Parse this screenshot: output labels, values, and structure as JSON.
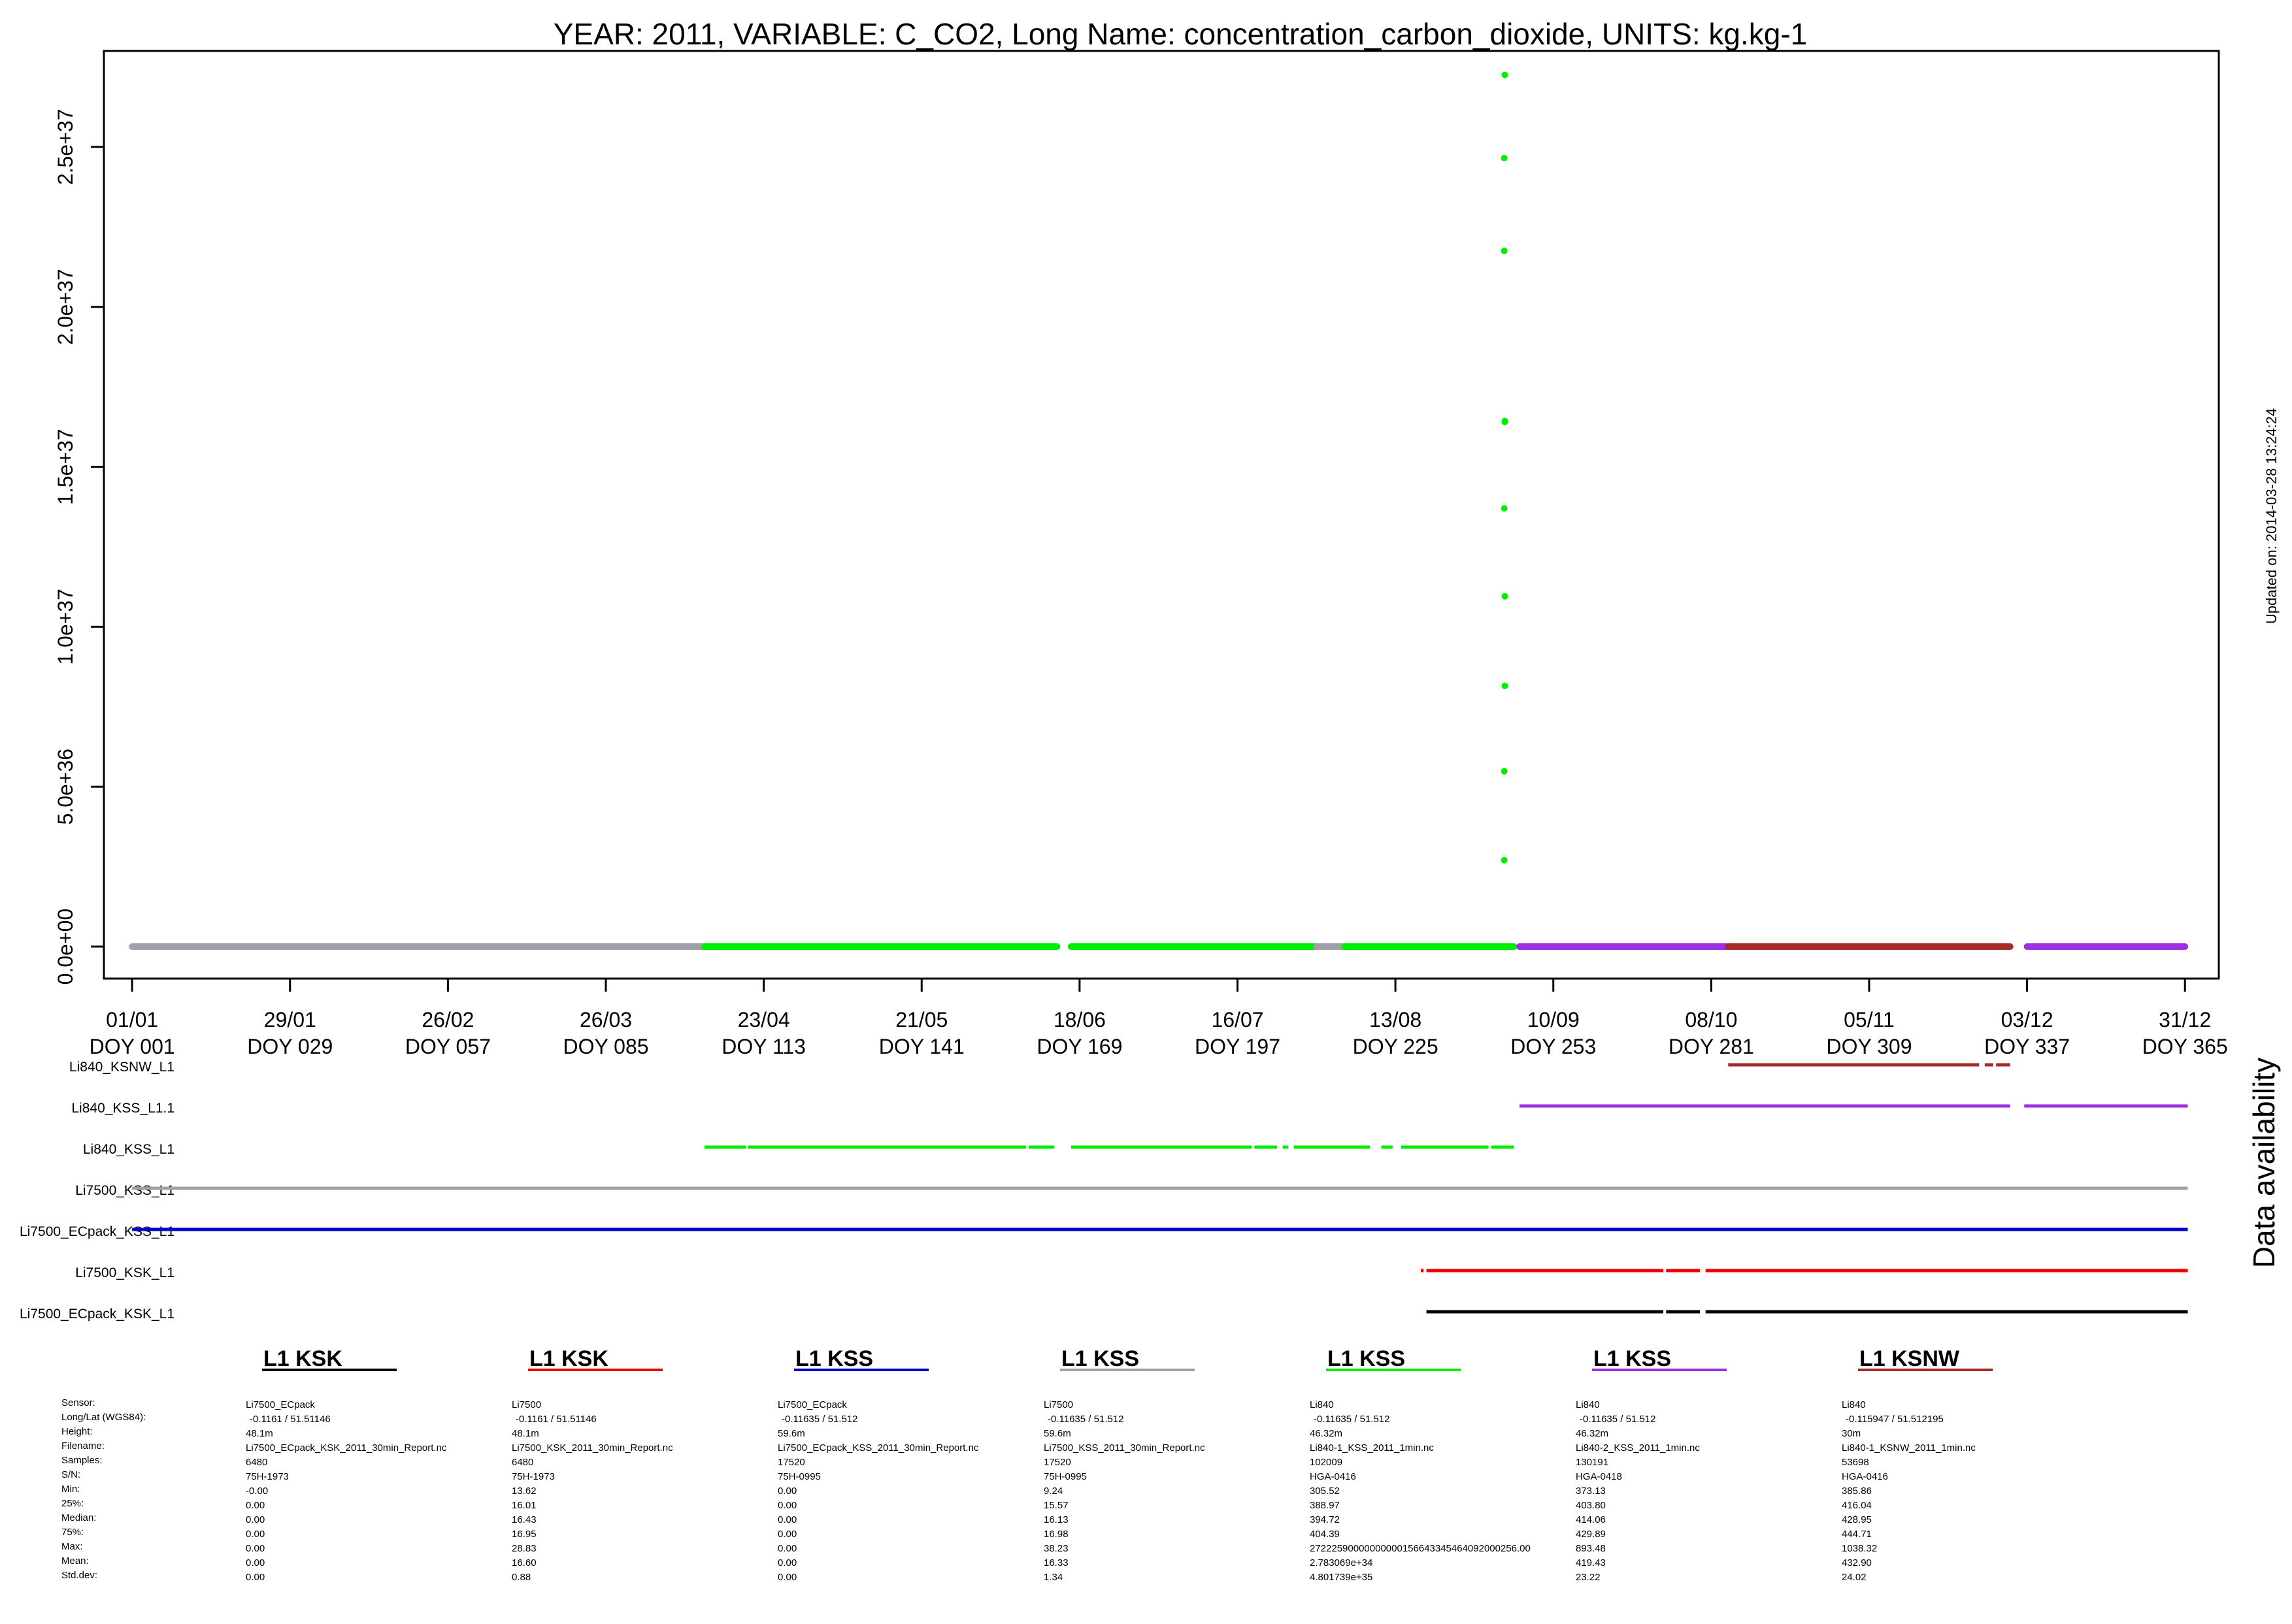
{
  "chart_data": {
    "type": "scatter",
    "title": "YEAR: 2011, VARIABLE: C_CO2, Long Name: concentration_carbon_dioxide, UNITS: kg.kg-1",
    "updated": "Updated on: 2014-03-28 13:24:24",
    "availability_label": "Data availability",
    "xlim": [
      -4,
      371
    ],
    "ylim": [
      -1e+36,
      2.8e+37
    ],
    "x_ticks": [
      {
        "doy": 1,
        "date": "01/01",
        "label": "DOY 001"
      },
      {
        "doy": 29,
        "date": "29/01",
        "label": "DOY 029"
      },
      {
        "doy": 57,
        "date": "26/02",
        "label": "DOY 057"
      },
      {
        "doy": 85,
        "date": "26/03",
        "label": "DOY 085"
      },
      {
        "doy": 113,
        "date": "23/04",
        "label": "DOY 113"
      },
      {
        "doy": 141,
        "date": "21/05",
        "label": "DOY 141"
      },
      {
        "doy": 169,
        "date": "18/06",
        "label": "DOY 169"
      },
      {
        "doy": 197,
        "date": "16/07",
        "label": "DOY 197"
      },
      {
        "doy": 225,
        "date": "13/08",
        "label": "DOY 225"
      },
      {
        "doy": 253,
        "date": "10/09",
        "label": "DOY 253"
      },
      {
        "doy": 281,
        "date": "08/10",
        "label": "DOY 281"
      },
      {
        "doy": 309,
        "date": "05/11",
        "label": "DOY 309"
      },
      {
        "doy": 337,
        "date": "03/12",
        "label": "DOY 337"
      },
      {
        "doy": 365,
        "date": "31/12",
        "label": "DOY 365"
      }
    ],
    "y_ticks": [
      {
        "value": 0,
        "label": "0.0e+00"
      },
      {
        "value": 5e+36,
        "label": "5.0e+36"
      },
      {
        "value": 1e+37,
        "label": "1.0e+37"
      },
      {
        "value": 1.5e+37,
        "label": "1.5e+37"
      },
      {
        "value": 2e+37,
        "label": "2.0e+37"
      },
      {
        "value": 2.5e+37,
        "label": "2.5e+37"
      }
    ],
    "baseline_segments": [
      {
        "color": "#a0a0a8",
        "from": 1,
        "to": 102.5
      },
      {
        "color": "#00ee00",
        "from": 102.5,
        "to": 165
      },
      {
        "color": "#00ee00",
        "from": 167.5,
        "to": 211
      },
      {
        "color": "#a0a0a8",
        "from": 211,
        "to": 216
      },
      {
        "color": "#00ee00",
        "from": 216,
        "to": 246
      },
      {
        "color": "#9b30e0",
        "from": 247,
        "to": 284
      },
      {
        "color": "#a52a2a",
        "from": 284,
        "to": 334
      },
      {
        "color": "#9b30e0",
        "from": 337,
        "to": 365
      }
    ],
    "outliers": {
      "color": "#00ee00",
      "x": [
        244.3,
        244.3,
        244.4,
        244.4,
        244.3,
        244.4,
        244.4,
        244.3,
        244.3,
        244.4
      ],
      "y": [
        2.7e+36,
        5.48e+36,
        8.15e+36,
        1.095e+37,
        1.37e+37,
        1.64e+37,
        1.643e+37,
        2.175e+37,
        2.465e+37,
        2.725e+37
      ]
    },
    "availability": [
      {
        "name": "Li840_KSNW_L1",
        "color": "#a52a2a",
        "segments": [
          [
            284,
            328.5
          ],
          [
            329.5,
            331
          ],
          [
            331.5,
            334
          ]
        ]
      },
      {
        "name": "Li840_KSS_L1.1",
        "color": "#9b30e0",
        "segments": [
          [
            247,
            334
          ],
          [
            336.5,
            365.5
          ]
        ]
      },
      {
        "name": "Li840_KSS_L1",
        "color": "#00ee00",
        "segments": [
          [
            102.5,
            109.8
          ],
          [
            110.2,
            159.5
          ],
          [
            160,
            164.5
          ],
          [
            167.5,
            199.5
          ],
          [
            200,
            204
          ],
          [
            205,
            206
          ],
          [
            207,
            220.5
          ],
          [
            222.5,
            224.5
          ],
          [
            226,
            241.5
          ],
          [
            242,
            246
          ]
        ]
      },
      {
        "name": "Li7500_KSS_L1",
        "color": "#a0a0a8",
        "segments": [
          [
            1,
            365.5
          ]
        ]
      },
      {
        "name": "Li7500_ECpack_KSS_L1",
        "color": "#0000cc",
        "segments": [
          [
            1,
            365.5
          ]
        ]
      },
      {
        "name": "Li7500_KSK_L1",
        "color": "#ee0000",
        "segments": [
          [
            229.5,
            230
          ],
          [
            230.5,
            272.5
          ],
          [
            273,
            279
          ],
          [
            280,
            365.5
          ]
        ]
      },
      {
        "name": "Li7500_ECpack_KSK_L1",
        "color": "#000000",
        "segments": [
          [
            230.5,
            272.5
          ],
          [
            273,
            279
          ],
          [
            280,
            365.5
          ]
        ]
      }
    ],
    "stat_labels": [
      "Sensor:",
      "Long/Lat (WGS84):",
      "Height:",
      "Filename:",
      "Samples:",
      "S/N:",
      "Min:",
      "25%:",
      "Median:",
      "75%:",
      "Max:",
      "Mean:",
      "Std.dev:"
    ],
    "stations": [
      {
        "title": "L1 KSK",
        "color": "#000000",
        "values": [
          "Li7500_ECpack",
          "-0.1161 / 51.51146",
          "48.1m",
          "Li7500_ECpack_KSK_2011_30min_Report.nc",
          "6480",
          "75H-1973",
          "-0.00",
          "0.00",
          "0.00",
          "0.00",
          "0.00",
          "0.00",
          "0.00"
        ]
      },
      {
        "title": "L1 KSK",
        "color": "#ee0000",
        "values": [
          "Li7500",
          "-0.1161 / 51.51146",
          "48.1m",
          "Li7500_KSK_2011_30min_Report.nc",
          "6480",
          "75H-1973",
          "13.62",
          "16.01",
          "16.43",
          "16.95",
          "28.83",
          "16.60",
          "0.88"
        ]
      },
      {
        "title": "L1 KSS",
        "color": "#0000cc",
        "values": [
          "Li7500_ECpack",
          "-0.11635 / 51.512",
          "59.6m",
          "Li7500_ECpack_KSS_2011_30min_Report.nc",
          "17520",
          "75H-0995",
          "0.00",
          "0.00",
          "0.00",
          "0.00",
          "0.00",
          "0.00",
          "0.00"
        ]
      },
      {
        "title": "L1 KSS",
        "color": "#a0a0a8",
        "values": [
          "Li7500",
          "-0.11635 / 51.512",
          "59.6m",
          "Li7500_KSS_2011_30min_Report.nc",
          "17520",
          "75H-0995",
          "9.24",
          "15.57",
          "16.13",
          "16.98",
          "38.23",
          "16.33",
          "1.34"
        ]
      },
      {
        "title": "L1 KSS",
        "color": "#00ee00",
        "values": [
          "Li840",
          "-0.11635 / 51.512",
          "46.32m",
          "Li840-1_KSS_2011_1min.nc",
          "102009",
          "HGA-0416",
          "305.52",
          "388.97",
          "394.72",
          "404.39",
          "27222590000000000156643345464092000256.00",
          "2.783069e+34",
          "4.801739e+35"
        ]
      },
      {
        "title": "L1 KSS",
        "color": "#9b30e0",
        "values": [
          "Li840",
          "-0.11635 / 51.512",
          "46.32m",
          "Li840-2_KSS_2011_1min.nc",
          "130191",
          "HGA-0418",
          "373.13",
          "403.80",
          "414.06",
          "429.89",
          "893.48",
          "419.43",
          "23.22"
        ]
      },
      {
        "title": "L1 KSNW",
        "color": "#a52a2a",
        "values": [
          "Li840",
          "-0.115947 / 51.512195",
          "30m",
          "Li840-1_KSNW_2011_1min.nc",
          "53698",
          "HGA-0416",
          "385.86",
          "416.04",
          "428.95",
          "444.71",
          "1038.32",
          "432.90",
          "24.02"
        ]
      }
    ]
  }
}
